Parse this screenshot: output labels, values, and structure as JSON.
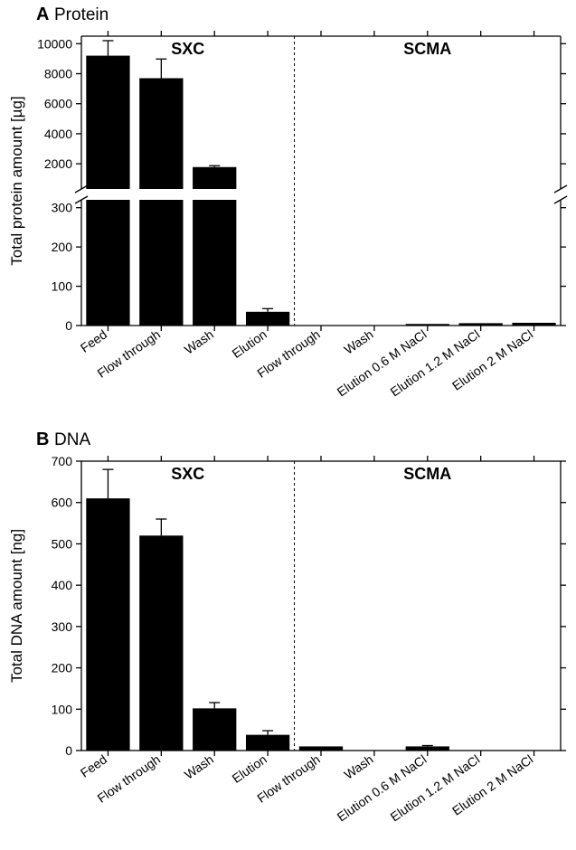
{
  "panel_a": {
    "panel_letter": "A",
    "panel_title": "Protein",
    "type": "bar",
    "ylabel": "Total protein amount [µg]",
    "group_labels": {
      "left": "SXC",
      "right": "SCMA"
    },
    "bar_color": "#000000",
    "background_color": "#ffffff",
    "axis_color": "#000000",
    "divider_dash": [
      3,
      3
    ],
    "axis_break": true,
    "lower_ylim": [
      0,
      320
    ],
    "lower_yticks": [
      0,
      100,
      200,
      300
    ],
    "upper_ylim": [
      320,
      10500
    ],
    "upper_yticks": [
      2000,
      4000,
      6000,
      8000,
      10000
    ],
    "categories_sxc": [
      "Feed",
      "Flow through",
      "Wash",
      "Elution"
    ],
    "categories_scma": [
      "Flow through",
      "Wash",
      "Elution 0.6 M NaCl",
      "Elution 1.2 M NaCl",
      "Elution 2 M NaCl"
    ],
    "values_sxc": [
      9200,
      7700,
      1780,
      35
    ],
    "errors_sxc": [
      1000,
      1280,
      90,
      8
    ],
    "values_scma": [
      0,
      0,
      4,
      6,
      7
    ],
    "errors_scma": [
      0,
      0,
      0,
      0,
      0
    ],
    "bar_width": 0.82,
    "label_fontsize": 17,
    "tick_fontsize": 14,
    "panel_label_fontsize": 20,
    "panel_title_fontsize": 19
  },
  "panel_b": {
    "panel_letter": "B",
    "panel_title": "DNA",
    "type": "bar",
    "ylabel": "Total DNA amount [ng]",
    "group_labels": {
      "left": "SXC",
      "right": "SCMA"
    },
    "bar_color": "#000000",
    "background_color": "#ffffff",
    "axis_color": "#000000",
    "divider_dash": [
      3,
      3
    ],
    "axis_break": false,
    "ylim": [
      0,
      700
    ],
    "yticks": [
      0,
      100,
      200,
      300,
      400,
      500,
      600,
      700
    ],
    "categories_sxc": [
      "Feed",
      "Flow through",
      "Wash",
      "Elution"
    ],
    "categories_scma": [
      "Flow through",
      "Wash",
      "Elution 0.6 M NaCl",
      "Elution 1.2 M NaCl",
      "Elution 2 M NaCl"
    ],
    "values_sxc": [
      610,
      520,
      102,
      38
    ],
    "errors_sxc": [
      70,
      40,
      14,
      10
    ],
    "values_scma": [
      10,
      0,
      10,
      0,
      0
    ],
    "errors_scma": [
      0,
      0,
      2,
      0,
      0
    ],
    "bar_width": 0.82,
    "label_fontsize": 17,
    "tick_fontsize": 14,
    "panel_label_fontsize": 20,
    "panel_title_fontsize": 19
  }
}
